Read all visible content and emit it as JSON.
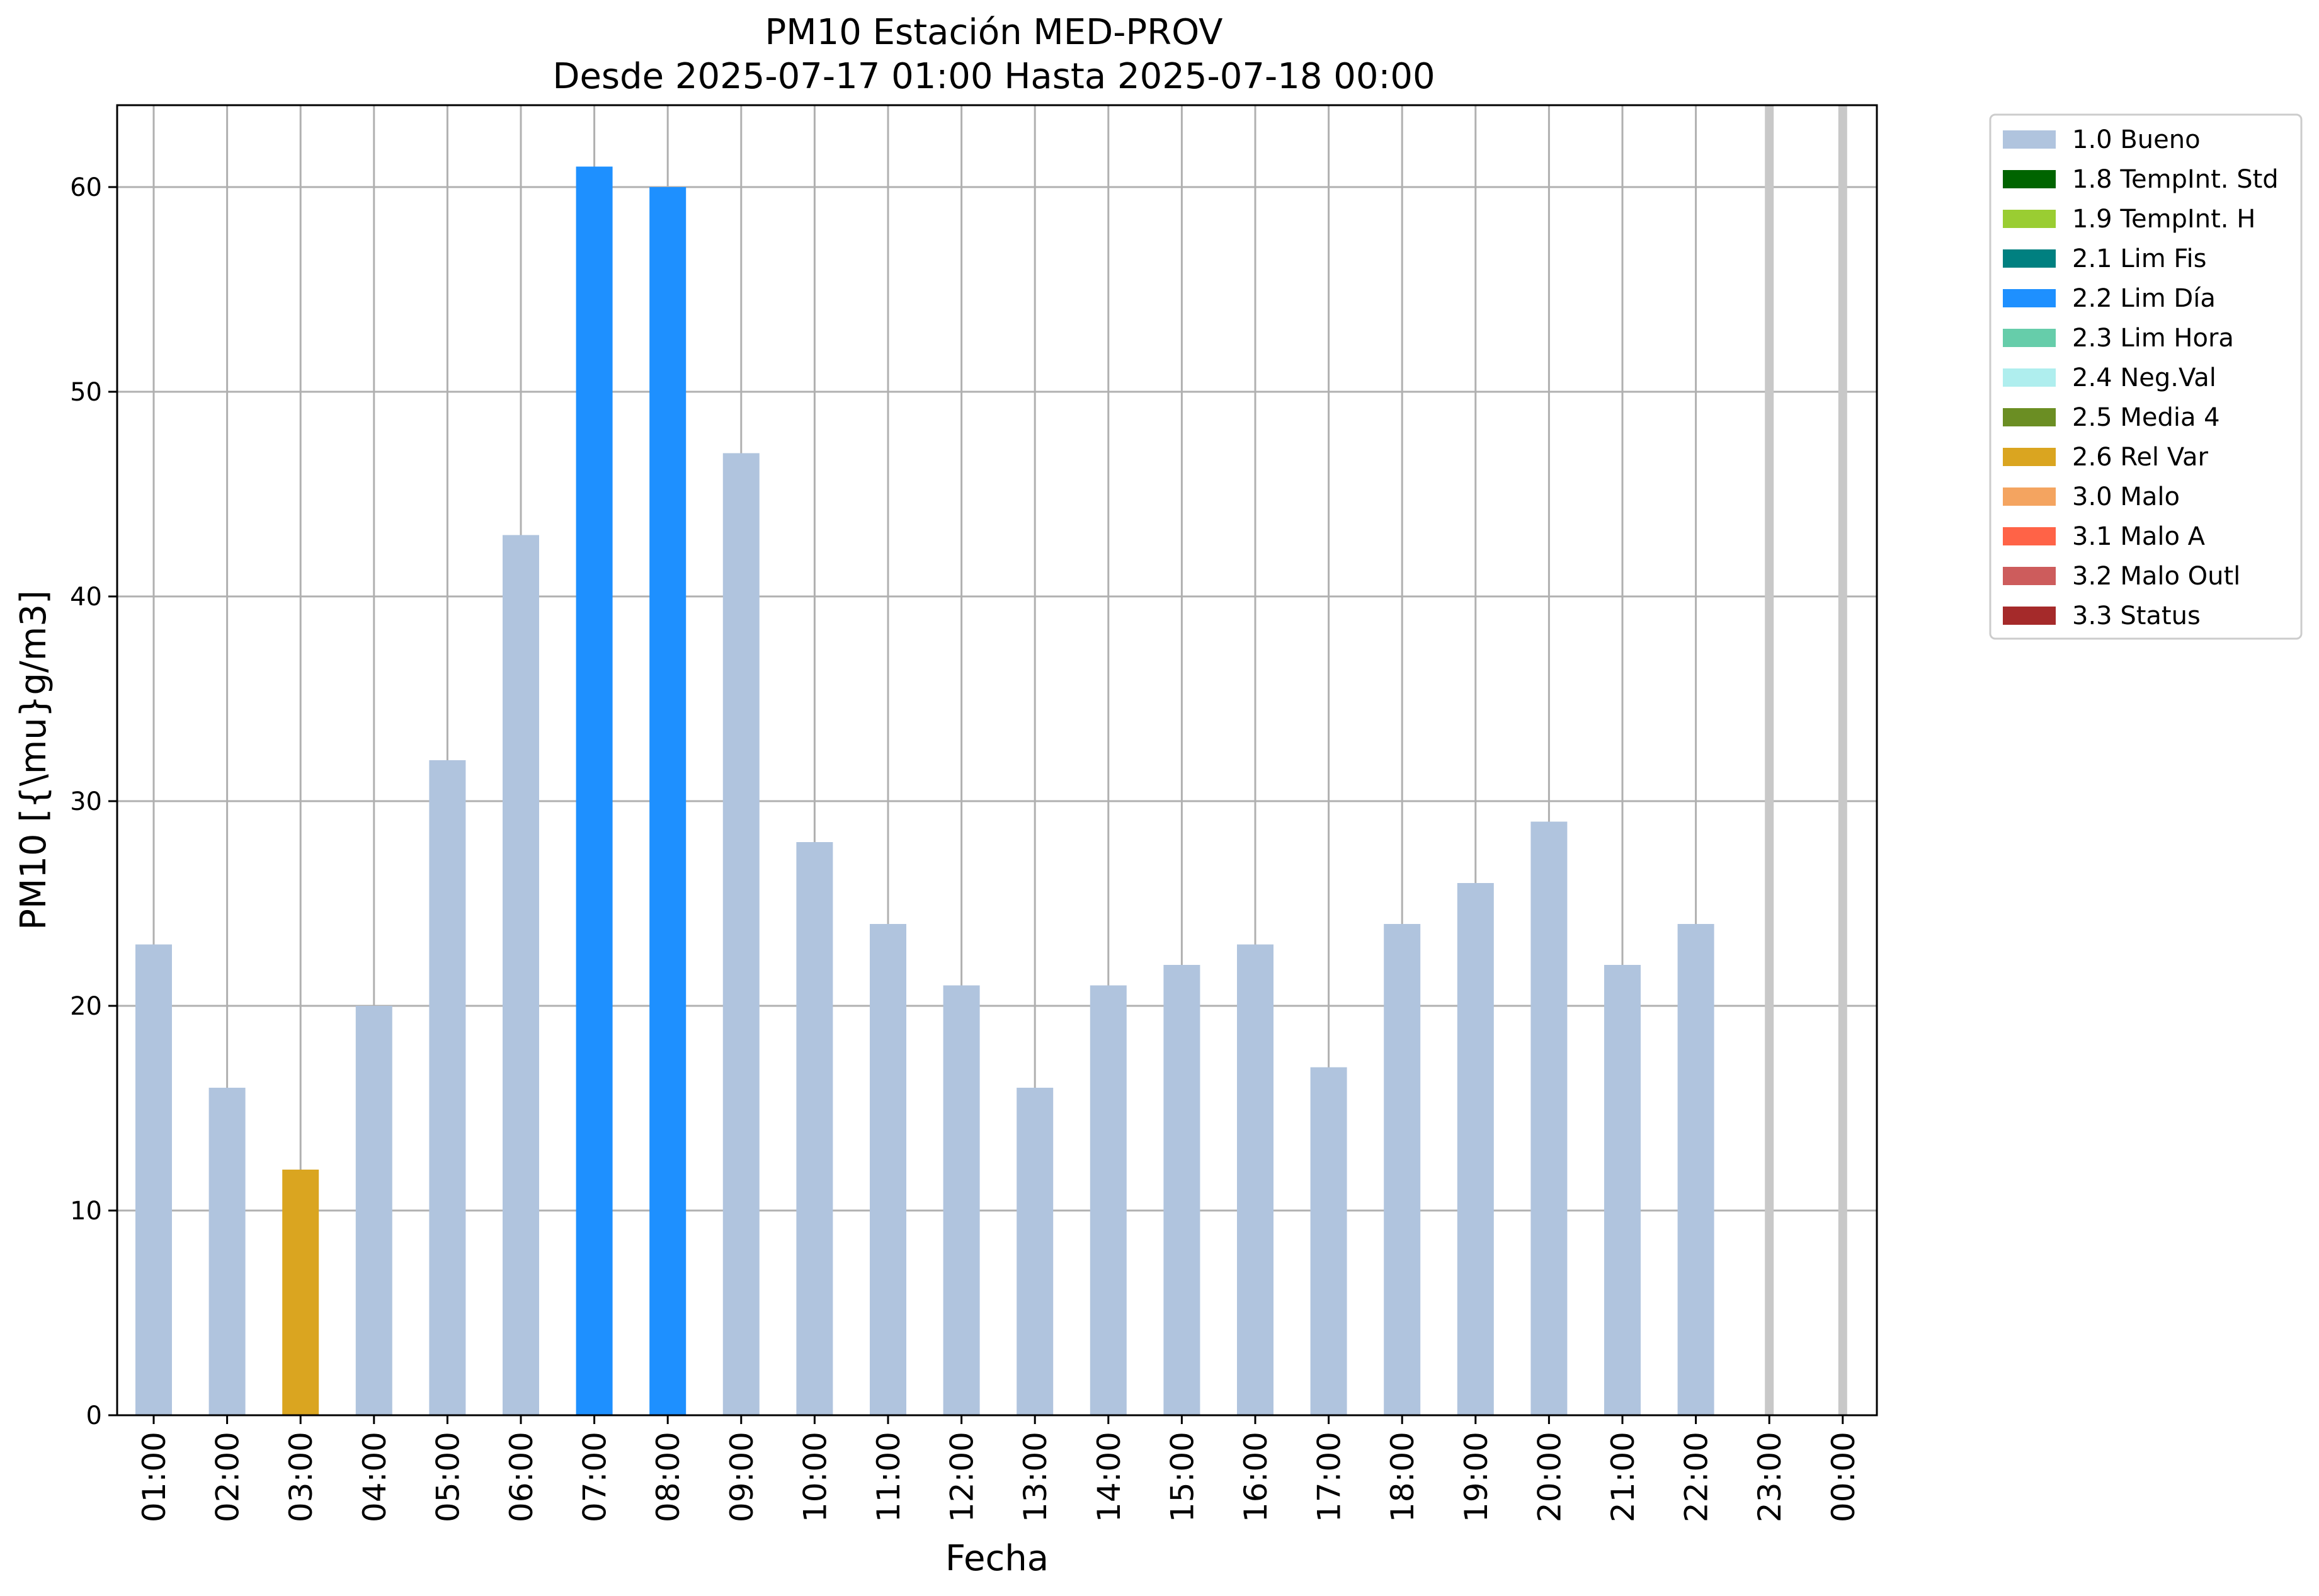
{
  "chart_data": {
    "type": "bar",
    "title": "PM10 Estación MED-PROV",
    "subtitle": "Desde 2025-07-17 01:00 Hasta 2025-07-18 00:00",
    "xlabel": "Fecha",
    "ylabel": "PM10 [{\\mu}g/m3]",
    "ylim": [
      0,
      64
    ],
    "yticks": [
      0,
      10,
      20,
      30,
      40,
      50,
      60
    ],
    "grid": true,
    "legend_position": "outside-right-top",
    "categories": [
      "01:00",
      "02:00",
      "03:00",
      "04:00",
      "05:00",
      "06:00",
      "07:00",
      "08:00",
      "09:00",
      "10:00",
      "11:00",
      "12:00",
      "13:00",
      "14:00",
      "15:00",
      "16:00",
      "17:00",
      "18:00",
      "19:00",
      "20:00",
      "21:00",
      "22:00",
      "23:00",
      "00:00"
    ],
    "values": [
      23,
      16,
      12,
      20,
      32,
      43,
      61,
      60,
      47,
      28,
      24,
      21,
      16,
      21,
      22,
      23,
      17,
      24,
      26,
      29,
      22,
      24,
      null,
      null
    ],
    "flags": [
      "1.0 Bueno",
      "1.0 Bueno",
      "2.6 Rel Var",
      "1.0 Bueno",
      "1.0 Bueno",
      "1.0 Bueno",
      "2.2 Lim Día",
      "2.2 Lim Día",
      "1.0 Bueno",
      "1.0 Bueno",
      "1.0 Bueno",
      "1.0 Bueno",
      "1.0 Bueno",
      "1.0 Bueno",
      "1.0 Bueno",
      "1.0 Bueno",
      "1.0 Bueno",
      "1.0 Bueno",
      "1.0 Bueno",
      "1.0 Bueno",
      "1.0 Bueno",
      "1.0 Bueno",
      null,
      null
    ],
    "missing_markers": [
      "23:00",
      "00:00"
    ],
    "legend": [
      {
        "label": "1.0 Bueno",
        "color": "#b0c4de"
      },
      {
        "label": "1.8 TempInt. Std",
        "color": "#006400"
      },
      {
        "label": "1.9 TempInt. H",
        "color": "#9acd32"
      },
      {
        "label": "2.1 Lim Fis",
        "color": "#008080"
      },
      {
        "label": "2.2 Lim Día",
        "color": "#1e90ff"
      },
      {
        "label": "2.3 Lim Hora",
        "color": "#66cdaa"
      },
      {
        "label": "2.4 Neg.Val",
        "color": "#afeeee"
      },
      {
        "label": "2.5 Media 4",
        "color": "#6b8e23"
      },
      {
        "label": "2.6 Rel Var",
        "color": "#daa520"
      },
      {
        "label": "3.0 Malo",
        "color": "#f4a460"
      },
      {
        "label": "3.1 Malo A",
        "color": "#ff6347"
      },
      {
        "label": "3.2 Malo Outl",
        "color": "#cd5c5c"
      },
      {
        "label": "3.3 Status",
        "color": "#a52a2a"
      }
    ]
  }
}
